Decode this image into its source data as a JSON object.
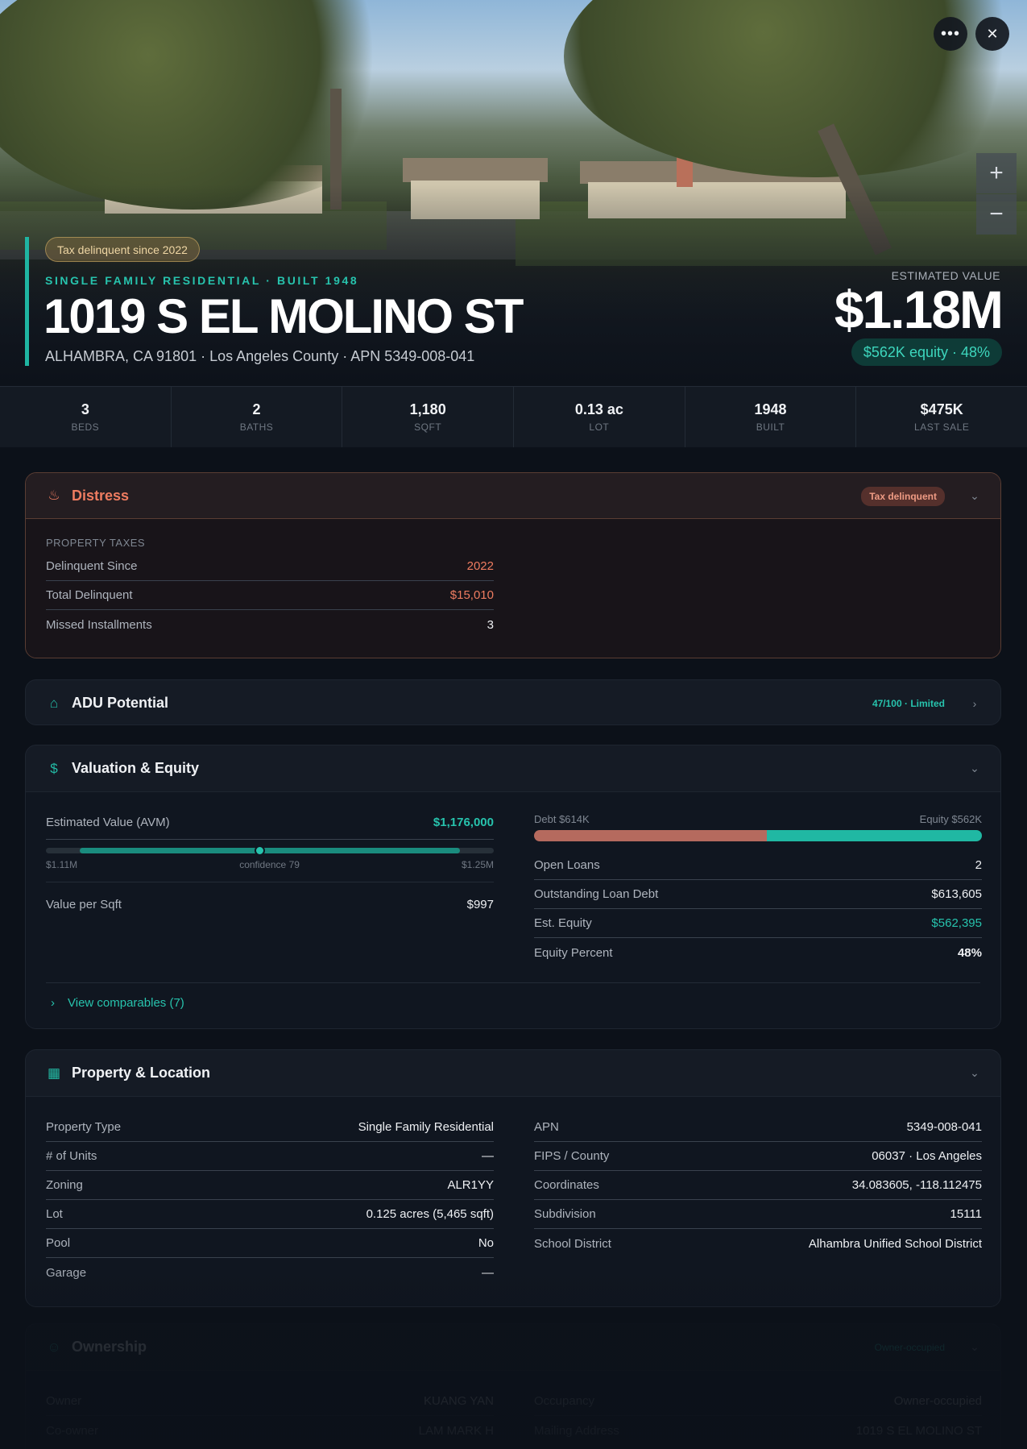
{
  "hero": {
    "more_icon": "more-horizontal-icon",
    "close_icon": "close-icon",
    "zoom_in": "+",
    "zoom_out": "−",
    "tag": "Tax delinquent since 2022",
    "eyebrow": "SINGLE FAMILY RESIDENTIAL · BUILT 1948",
    "address": "1019 S EL MOLINO ST",
    "subaddress": "ALHAMBRA, CA 91801 · Los Angeles County · APN 5349-008-041",
    "estimated_label": "ESTIMATED VALUE",
    "estimated_value": "$1.18M",
    "equity_pill": "$562K equity · 48%"
  },
  "stats": [
    {
      "value": "3",
      "label": "BEDS"
    },
    {
      "value": "2",
      "label": "BATHS"
    },
    {
      "value": "1,180",
      "label": "SQFT"
    },
    {
      "value": "0.13 ac",
      "label": "LOT"
    },
    {
      "value": "1948",
      "label": "BUILT"
    },
    {
      "value": "$475K",
      "label": "LAST SALE"
    }
  ],
  "distress": {
    "title": "Distress",
    "icon": "flame-icon",
    "badge": "Tax delinquent",
    "section": "PROPERTY TAXES",
    "rows": [
      {
        "k": "Delinquent Since",
        "v": "2022"
      },
      {
        "k": "Total Delinquent",
        "v": "$15,010"
      },
      {
        "k": "Missed Installments",
        "v": "3"
      }
    ]
  },
  "adu": {
    "title": "ADU Potential",
    "icon": "home-icon",
    "badge": "47/100 · Limited"
  },
  "valuation": {
    "title": "Valuation & Equity",
    "icon": "dollar-icon",
    "avm_label": "Estimated Value (AVM)",
    "avm_value": "$1,176,000",
    "range_low": "$1.11M",
    "range_mid": "confidence 79",
    "range_high": "$1.25M",
    "range_low_value": 1110000,
    "range_high_value": 1250000,
    "range_estimate": 1176000,
    "value_sqft_label": "Value per Sqft",
    "value_sqft": "$997",
    "debt_label": "Debt $614K",
    "equity_label": "Equity $562K",
    "debt_fraction": 0.52,
    "rows": [
      {
        "k": "Open Loans",
        "v": "2"
      },
      {
        "k": "Outstanding Loan Debt",
        "v": "$613,605"
      },
      {
        "k": "Est. Equity",
        "v": "$562,395"
      },
      {
        "k": "Equity Percent",
        "v": "48%"
      }
    ],
    "comparables": "View comparables (7)"
  },
  "property": {
    "title": "Property & Location",
    "icon": "building-icon",
    "left": [
      {
        "k": "Property Type",
        "v": "Single Family Residential"
      },
      {
        "k": "# of Units",
        "v": "—"
      },
      {
        "k": "Zoning",
        "v": "ALR1YY"
      },
      {
        "k": "Lot",
        "v": "0.125 acres (5,465 sqft)"
      },
      {
        "k": "Pool",
        "v": "No"
      },
      {
        "k": "Garage",
        "v": "—"
      }
    ],
    "right": [
      {
        "k": "APN",
        "v": "5349-008-041"
      },
      {
        "k": "FIPS / County",
        "v": "06037 · Los Angeles"
      },
      {
        "k": "Coordinates",
        "v": "34.083605, -118.112475"
      },
      {
        "k": "Subdivision",
        "v": "15111"
      },
      {
        "k": "School District",
        "v": "Alhambra Unified School District"
      }
    ]
  },
  "ownership": {
    "title": "Ownership",
    "icon": "user-icon",
    "badge": "Owner-occupied",
    "left": [
      {
        "k": "Owner",
        "v": "KUANG YAN"
      },
      {
        "k": "Co-owner",
        "v": "LAM MARK H"
      }
    ],
    "right": [
      {
        "k": "Occupancy",
        "v": "Owner-occupied"
      },
      {
        "k": "Mailing Address",
        "v": "1019 S EL MOLINO ST"
      }
    ]
  },
  "colors": {
    "accent": "#27c3ad",
    "distress": "#ee7c60",
    "debt": "#b56a5e",
    "background": "#0c1119"
  }
}
